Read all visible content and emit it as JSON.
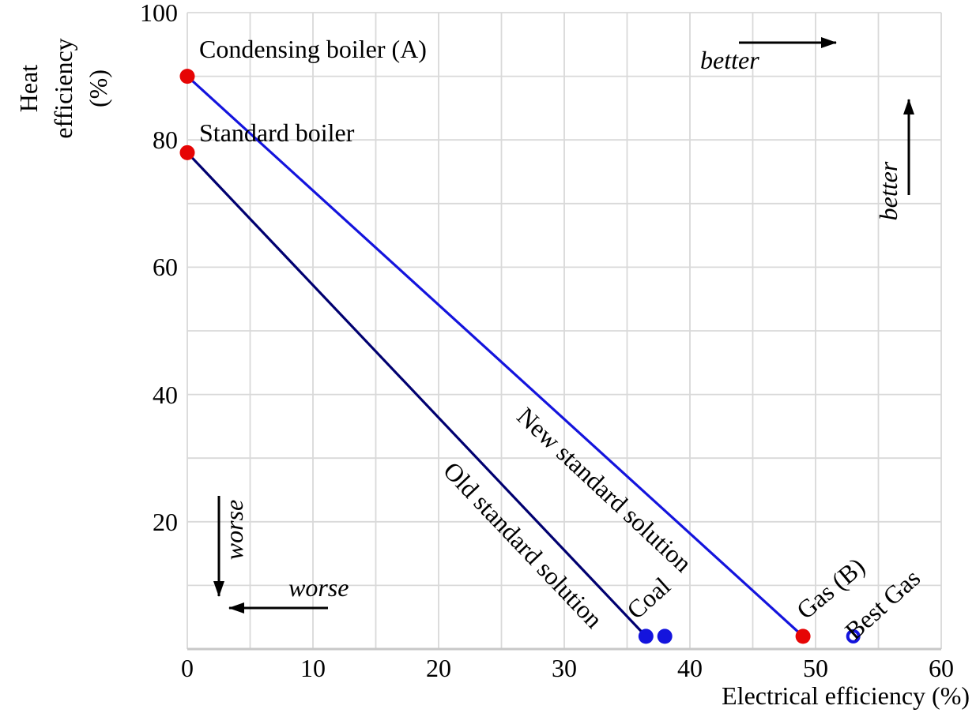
{
  "chart_data": {
    "type": "scatter",
    "title": "",
    "xlabel": "Electrical efficiency (%)",
    "ylabel": "Heat efficiency (%)",
    "ylabel_lines": [
      "Heat",
      "efficiency",
      "(%)"
    ],
    "xlim": [
      0,
      60
    ],
    "ylim": [
      0,
      100
    ],
    "xticks": [
      0,
      10,
      20,
      30,
      40,
      50,
      60
    ],
    "yticks": [
      20,
      40,
      60,
      80,
      100
    ],
    "grid": {
      "x_step": 5,
      "y_step": 10,
      "on": true
    },
    "points": [
      {
        "id": "condensing-boiler-a",
        "label": "Condensing boiler (A)",
        "x": 0,
        "y": 90,
        "marker": "filled",
        "color_role": "red"
      },
      {
        "id": "standard-boiler",
        "label": "Standard boiler",
        "x": 0,
        "y": 78,
        "marker": "filled",
        "color_role": "red"
      },
      {
        "id": "coal",
        "label": "Coal",
        "x": 36.5,
        "y": 2,
        "marker": "filled",
        "color_role": "blue"
      },
      {
        "id": "coal-2",
        "label": "",
        "x": 38,
        "y": 2,
        "marker": "filled",
        "color_role": "blue"
      },
      {
        "id": "gas-b",
        "label": "Gas (B)",
        "x": 49,
        "y": 2,
        "marker": "filled",
        "color_role": "red"
      },
      {
        "id": "best-gas",
        "label": "Best Gas",
        "x": 53,
        "y": 2,
        "marker": "open",
        "color_role": "blue"
      }
    ],
    "lines": [
      {
        "id": "new-standard-solution",
        "label": "New standard solution",
        "from": [
          0,
          90
        ],
        "to": [
          49,
          2
        ],
        "color_role": "new_line"
      },
      {
        "id": "old-standard-solution",
        "label": "Old standard solution",
        "from": [
          0,
          78
        ],
        "to": [
          36.5,
          2
        ],
        "color_role": "old_line"
      }
    ],
    "annotations": [
      {
        "id": "better-right",
        "text": "better",
        "direction": "right"
      },
      {
        "id": "better-up",
        "text": "better",
        "direction": "up"
      },
      {
        "id": "worse-down",
        "text": "worse",
        "direction": "down"
      },
      {
        "id": "worse-left",
        "text": "worse",
        "direction": "left"
      }
    ],
    "colors": {
      "red": "#e60505",
      "blue": "#1414dd",
      "new_line": "#1414dd",
      "old_line": "#000070",
      "grid": "#d9d9d9",
      "axis": "#c8c8c8",
      "text": "#000000",
      "arrow": "#000000"
    }
  }
}
